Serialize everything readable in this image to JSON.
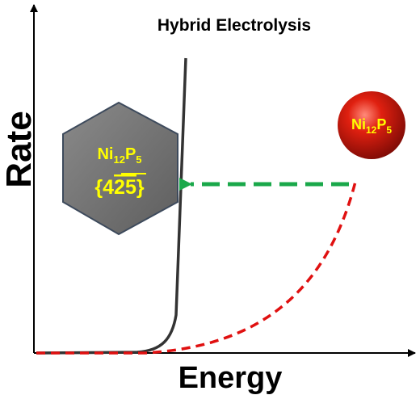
{
  "title": "Hybrid Electrolysis",
  "y_axis_label": "Rate",
  "x_axis_label": "Energy",
  "hexagon": {
    "formula": [
      "Ni",
      "12",
      "P",
      "5"
    ],
    "facet": [
      "{4",
      "25",
      "}"
    ]
  },
  "sphere": {
    "formula": [
      "Ni",
      "12",
      "P",
      "5"
    ]
  }
}
